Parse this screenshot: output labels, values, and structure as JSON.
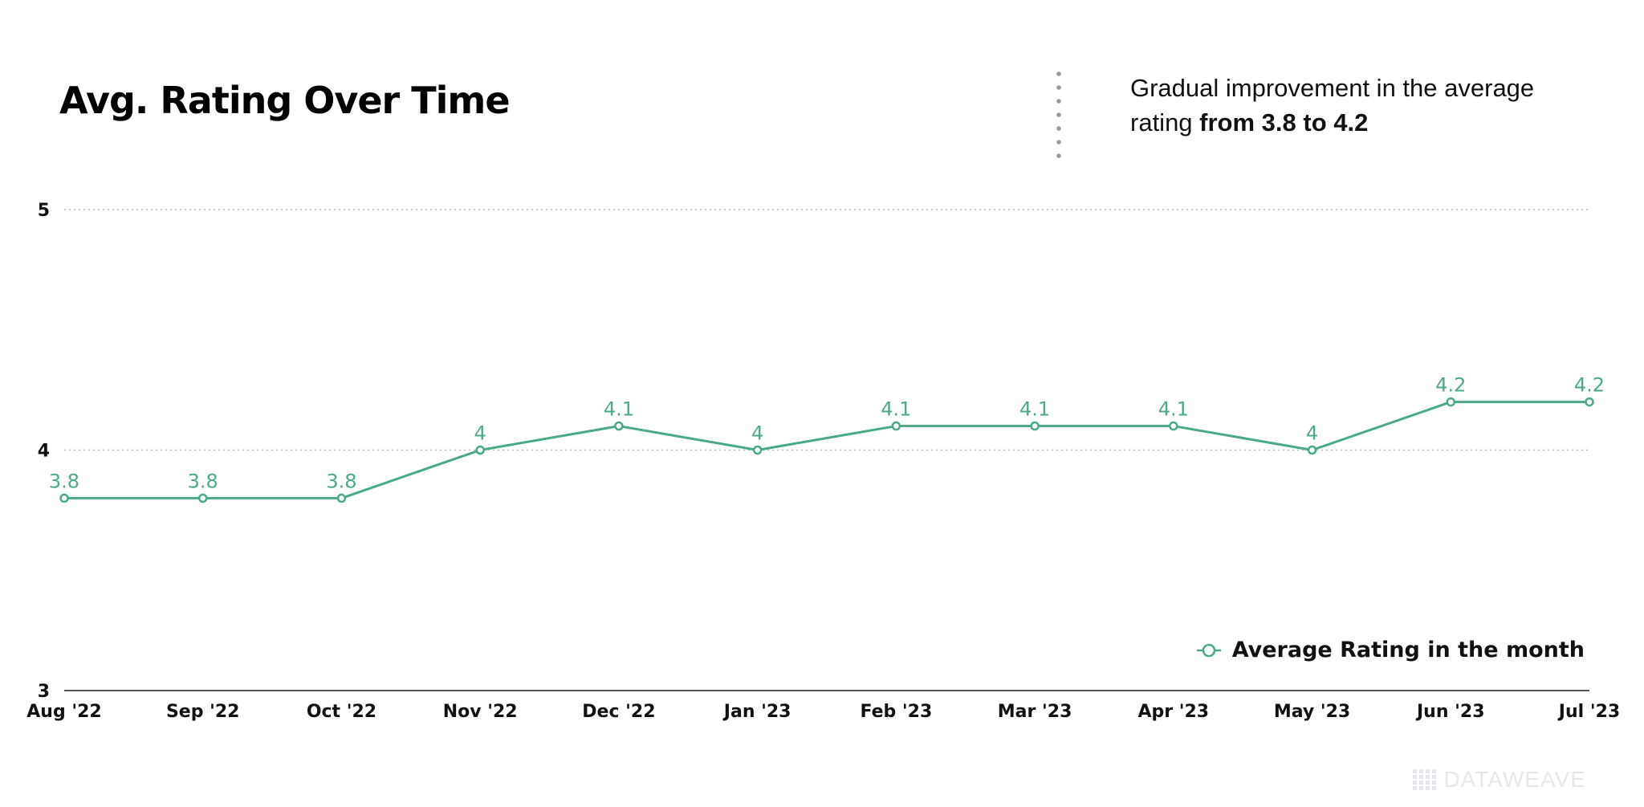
{
  "annotation": {
    "prefix": "Gradual improvement in the average rating ",
    "highlight": "from 3.8 to 4.2"
  },
  "watermark": {
    "text": "DATAWEAVE"
  },
  "colors": {
    "series": "#4aaa85",
    "grid": "#bdbdbd",
    "axis": "#222222",
    "divider": "#9a9a9a"
  },
  "chart_data": {
    "type": "line",
    "title": "Avg. Rating Over Time",
    "xlabel": "",
    "ylabel": "",
    "categories": [
      "Aug '22",
      "Sep '22",
      "Oct '22",
      "Nov '22",
      "Dec '22",
      "Jan '23",
      "Feb '23",
      "Mar '23",
      "Apr '23",
      "May '23",
      "Jun '23",
      "Jul '23"
    ],
    "series": [
      {
        "name": "Average Rating in the month",
        "values": [
          3.8,
          3.8,
          3.8,
          4,
          4.1,
          4,
          4.1,
          4.1,
          4.1,
          4,
          4.2,
          4.2
        ]
      }
    ],
    "ylim": [
      3,
      5
    ],
    "yticks": [
      3,
      4,
      5
    ],
    "grid": true,
    "legend": "bottom-right",
    "data_labels": true
  }
}
